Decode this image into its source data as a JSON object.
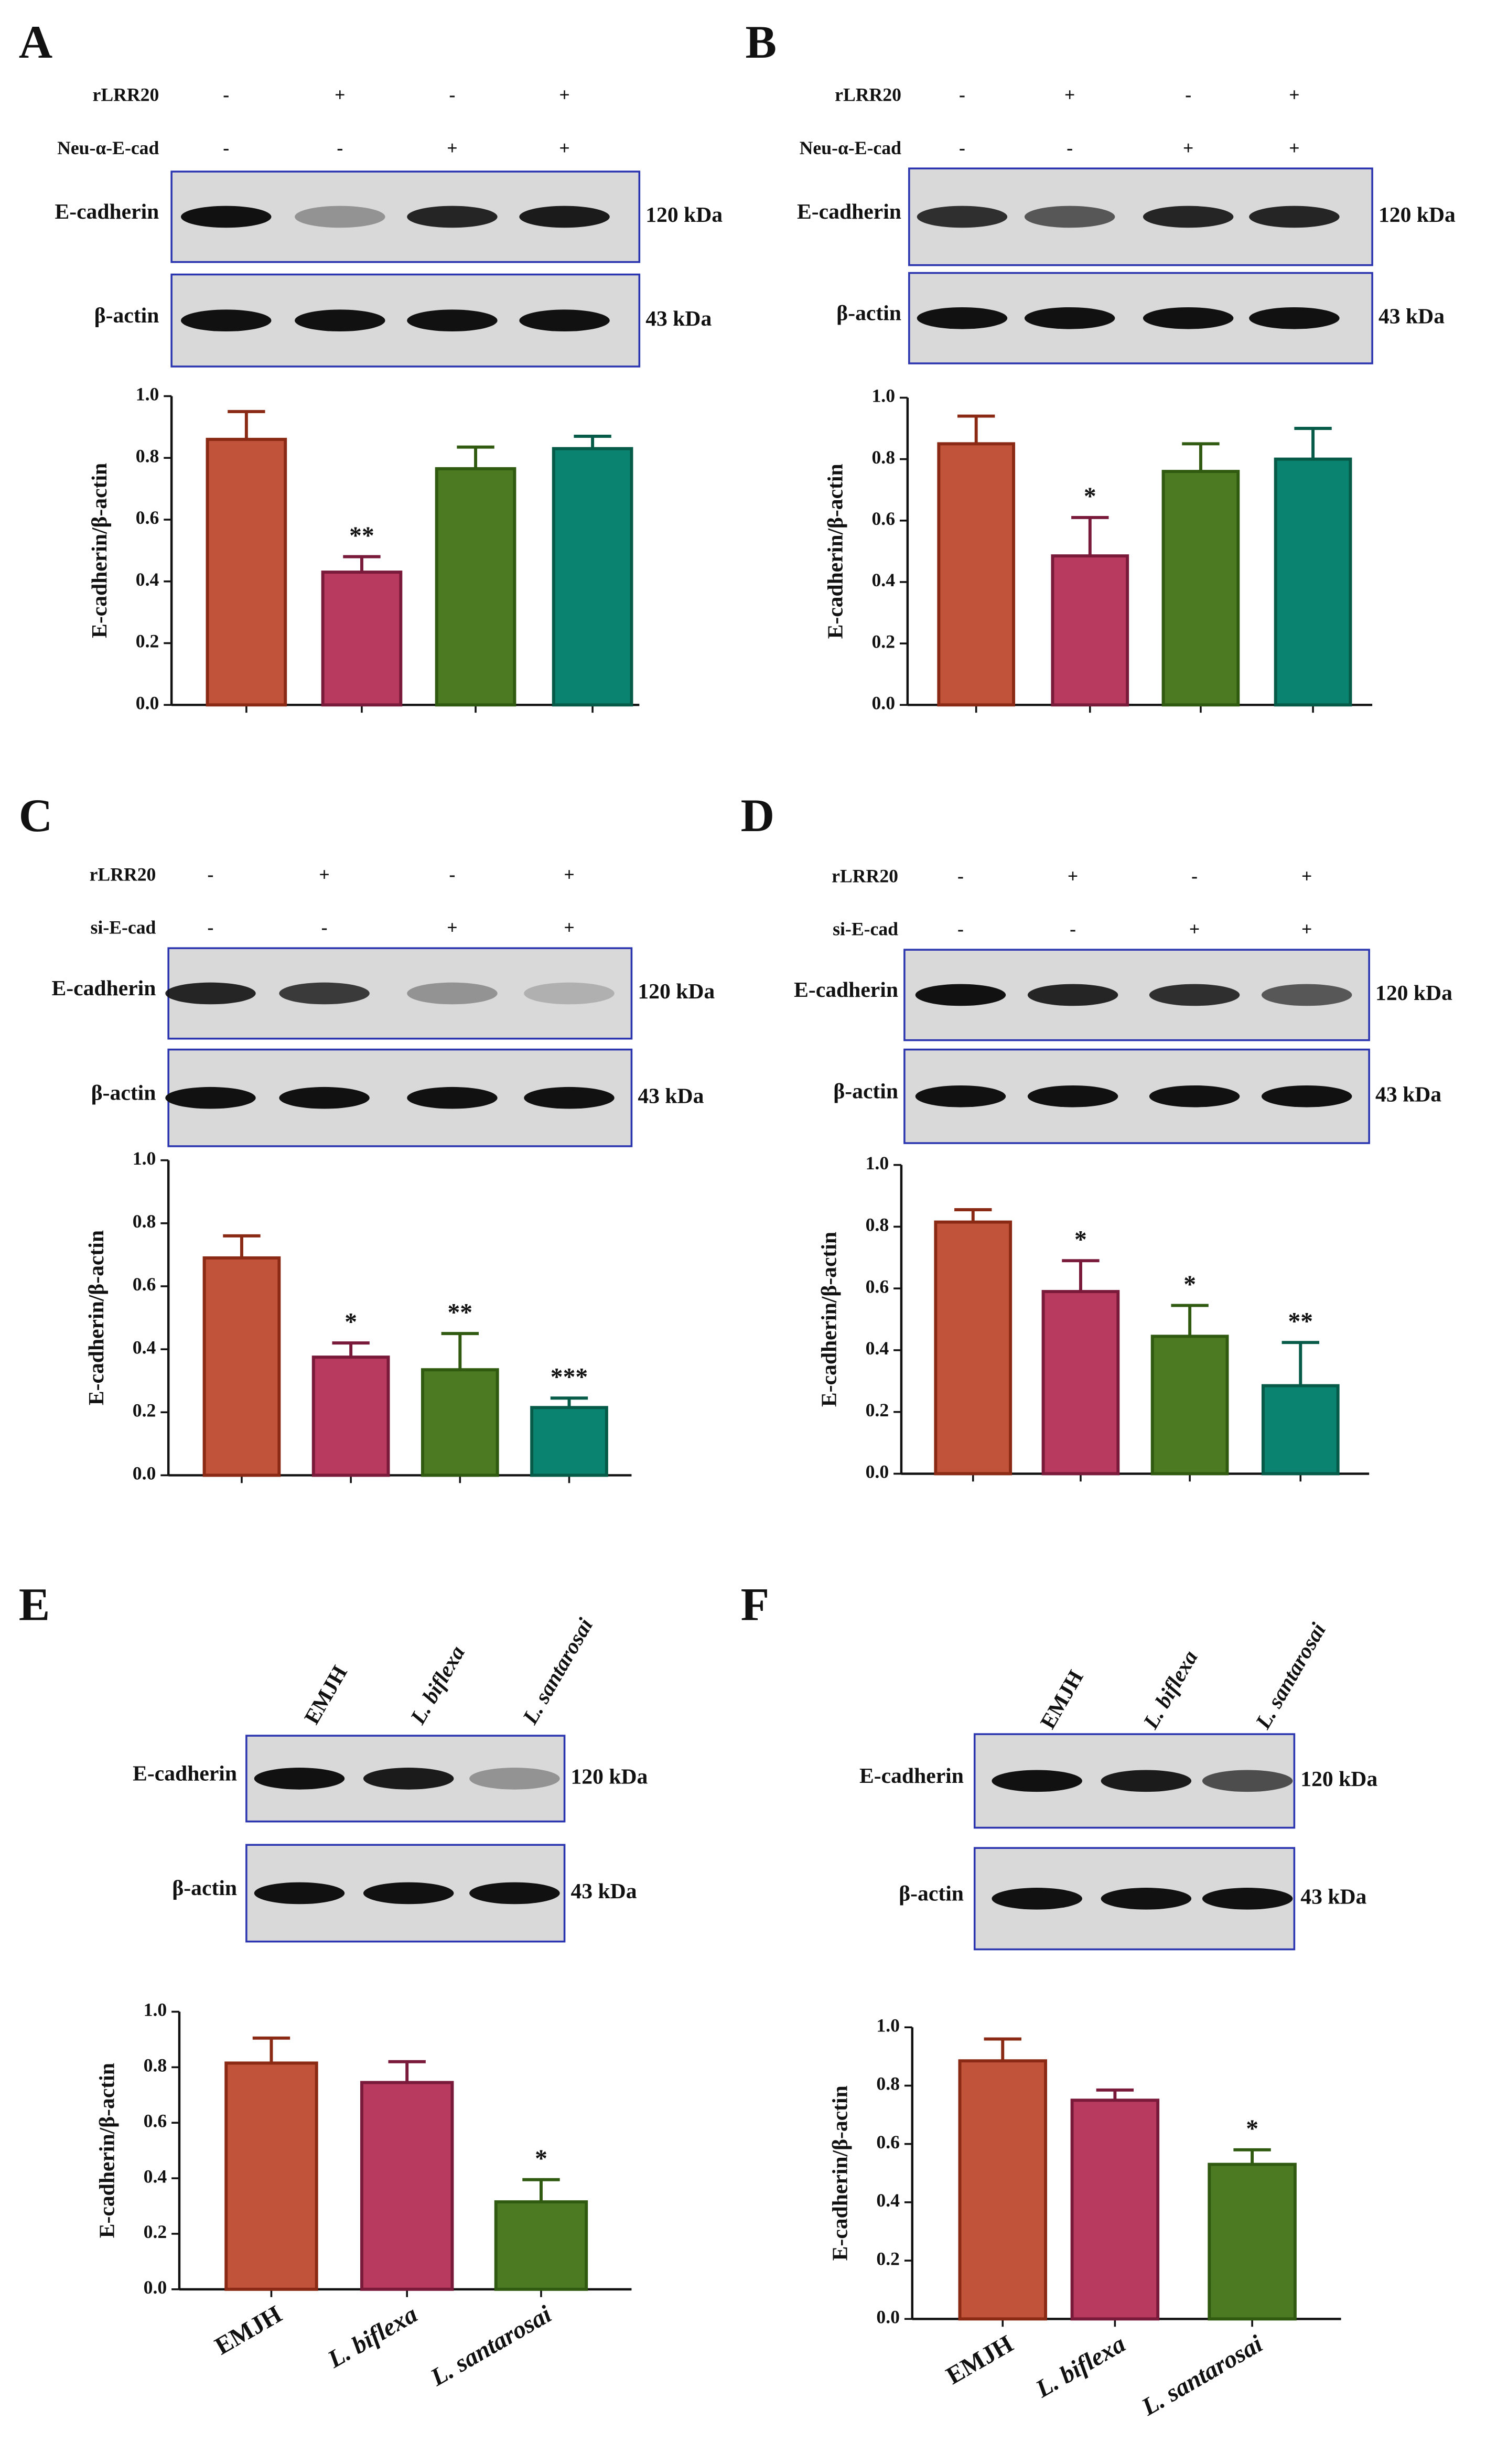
{
  "chart_data": [
    {
      "type": "bar",
      "panel": "A",
      "treatments": [
        {
          "name": "rLRR20",
          "signs": [
            "-",
            "+",
            "-",
            "+"
          ]
        },
        {
          "name": "Neu-α-E-cad",
          "signs": [
            "-",
            "-",
            "+",
            "+"
          ]
        }
      ],
      "blots": [
        {
          "name": "E-cadherin",
          "size": "120 kDa"
        },
        {
          "name": "β-actin",
          "size": "43 kDa"
        }
      ],
      "ylabel": "E-cadherin/β-actin",
      "categories": [
        null,
        null,
        null,
        null
      ],
      "values": [
        0.86,
        0.43,
        0.765,
        0.83
      ],
      "errors": [
        0.09,
        0.05,
        0.07,
        0.04
      ],
      "annotations": [
        null,
        "**",
        null,
        null
      ],
      "colors": [
        "#c0533a",
        "#b83a5e",
        "#4b7a22",
        "#0a8470"
      ],
      "edge_colors": [
        "#8b2a14",
        "#7a1a3a",
        "#2f5a10",
        "#065a48"
      ],
      "ylim": [
        0,
        1
      ],
      "yticks": [
        {
          "value": 0,
          "label": "0.0"
        },
        0.2,
        0.4,
        0.6,
        0.8,
        {
          "value": 1,
          "label": "1.0"
        }
      ]
    },
    {
      "type": "bar",
      "panel": "B",
      "treatments": [
        {
          "name": "rLRR20",
          "signs": [
            "-",
            "+",
            "-",
            "+"
          ]
        },
        {
          "name": "Neu-α-E-cad",
          "signs": [
            "-",
            "-",
            "+",
            "+"
          ]
        }
      ],
      "blots": [
        {
          "name": "E-cadherin",
          "size": "120 kDa"
        },
        {
          "name": "β-actin",
          "size": "43 kDa"
        }
      ],
      "ylabel": "E-cadherin/β-actin",
      "categories": [
        null,
        null,
        null,
        null
      ],
      "values": [
        0.85,
        0.485,
        0.76,
        0.8
      ],
      "errors": [
        0.09,
        0.125,
        0.09,
        0.1
      ],
      "annotations": [
        null,
        "*",
        null,
        null
      ],
      "colors": [
        "#c0533a",
        "#b83a5e",
        "#4b7a22",
        "#0a8470"
      ],
      "edge_colors": [
        "#8b2a14",
        "#7a1a3a",
        "#2f5a10",
        "#065a48"
      ],
      "ylim": [
        0,
        1
      ],
      "yticks": [
        {
          "value": 0,
          "label": "0.0"
        },
        0.2,
        0.4,
        0.6,
        0.8,
        {
          "value": 1,
          "label": "1.0"
        }
      ]
    },
    {
      "type": "bar",
      "panel": "C",
      "treatments": [
        {
          "name": "rLRR20",
          "signs": [
            "-",
            "+",
            "-",
            "+"
          ]
        },
        {
          "name": "si-E-cad",
          "signs": [
            "-",
            "-",
            "+",
            "+"
          ]
        }
      ],
      "blots": [
        {
          "name": "E-cadherin",
          "size": "120 kDa"
        },
        {
          "name": "β-actin",
          "size": "43 kDa"
        }
      ],
      "ylabel": "E-cadherin/β-actin",
      "categories": [
        null,
        null,
        null,
        null
      ],
      "values": [
        0.69,
        0.375,
        0.335,
        0.215
      ],
      "errors": [
        0.07,
        0.045,
        0.115,
        0.03
      ],
      "annotations": [
        null,
        "*",
        "**",
        "***"
      ],
      "colors": [
        "#c0533a",
        "#b83a5e",
        "#4b7a22",
        "#0a8470"
      ],
      "edge_colors": [
        "#8b2a14",
        "#7a1a3a",
        "#2f5a10",
        "#065a48"
      ],
      "ylim": [
        0,
        1
      ],
      "yticks": [
        {
          "value": 0,
          "label": "0.0"
        },
        0.2,
        0.4,
        0.6,
        0.8,
        {
          "value": 1,
          "label": "1.0"
        }
      ]
    },
    {
      "type": "bar",
      "panel": "D",
      "treatments": [
        {
          "name": "rLRR20",
          "signs": [
            "-",
            "+",
            "-",
            "+"
          ]
        },
        {
          "name": "si-E-cad",
          "signs": [
            "-",
            "-",
            "+",
            "+"
          ]
        }
      ],
      "blots": [
        {
          "name": "E-cadherin",
          "size": "120 kDa"
        },
        {
          "name": "β-actin",
          "size": "43 kDa"
        }
      ],
      "ylabel": "E-cadherin/β-actin",
      "categories": [
        null,
        null,
        null,
        null
      ],
      "values": [
        0.815,
        0.59,
        0.445,
        0.285
      ],
      "errors": [
        0.04,
        0.1,
        0.1,
        0.14
      ],
      "annotations": [
        null,
        "*",
        "*",
        "**"
      ],
      "colors": [
        "#c0533a",
        "#b83a5e",
        "#4b7a22",
        "#0a8470"
      ],
      "edge_colors": [
        "#8b2a14",
        "#7a1a3a",
        "#2f5a10",
        "#065a48"
      ],
      "ylim": [
        0,
        1
      ],
      "yticks": [
        {
          "value": 0,
          "label": "0.0"
        },
        0.2,
        0.4,
        0.6,
        0.8,
        {
          "value": 1,
          "label": "1.0"
        }
      ]
    },
    {
      "type": "bar",
      "panel": "E",
      "lanes": [
        "EMJH",
        "L. biflexa",
        "L. santarosai"
      ],
      "blots": [
        {
          "name": "E-cadherin",
          "size": "120 kDa"
        },
        {
          "name": "β-actin",
          "size": "43 kDa"
        }
      ],
      "ylabel": "E-cadherin/β-actin",
      "categories": [
        "EMJH",
        "L. biflexa",
        "L. santarosai"
      ],
      "values": [
        0.815,
        0.745,
        0.315
      ],
      "errors": [
        0.09,
        0.075,
        0.08
      ],
      "annotations": [
        null,
        null,
        "*"
      ],
      "colors": [
        "#c0533a",
        "#b83a5e",
        "#4b7a22"
      ],
      "edge_colors": [
        "#8b2a14",
        "#7a1a3a",
        "#2f5a10"
      ],
      "ylim": [
        0,
        1
      ],
      "yticks": [
        {
          "value": 0,
          "label": "0.0"
        },
        0.2,
        0.4,
        0.6,
        0.8,
        {
          "value": 1,
          "label": "1.0"
        }
      ]
    },
    {
      "type": "bar",
      "panel": "F",
      "lanes": [
        "EMJH",
        "L. biflexa",
        "L. santarosai"
      ],
      "blots": [
        {
          "name": "E-cadherin",
          "size": "120 kDa"
        },
        {
          "name": "β-actin",
          "size": "43 kDa"
        }
      ],
      "ylabel": "E-cadherin/β-actin",
      "categories": [
        "EMJH",
        "L. biflexa",
        "L. santarosai"
      ],
      "values": [
        0.885,
        0.75,
        0.53
      ],
      "errors": [
        0.075,
        0.035,
        0.05
      ],
      "annotations": [
        null,
        null,
        "*"
      ],
      "colors": [
        "#c0533a",
        "#b83a5e",
        "#4b7a22"
      ],
      "edge_colors": [
        "#8b2a14",
        "#7a1a3a",
        "#2f5a10"
      ],
      "ylim": [
        0,
        1
      ],
      "yticks": [
        {
          "value": 0,
          "label": "0.0"
        },
        0.2,
        0.4,
        0.6,
        0.8,
        {
          "value": 1,
          "label": "1.0"
        }
      ]
    }
  ]
}
